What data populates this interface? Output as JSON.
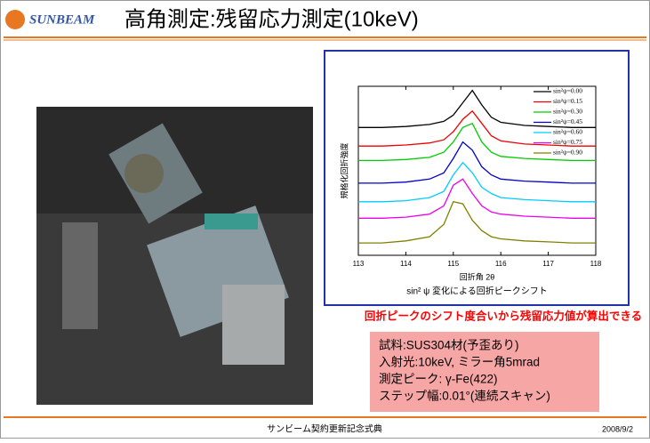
{
  "header": {
    "logo": "SUNBEAM",
    "title": "高角測定:残留応力測定(10keV)"
  },
  "chart_data": {
    "type": "line",
    "y_label": "規格化回折強度",
    "x_label": "回折角 2θ",
    "caption": "sin² ψ 変化による回折ピークシフト",
    "x": [
      113,
      113.5,
      114,
      114.5,
      114.8,
      115,
      115.2,
      115.4,
      115.6,
      115.8,
      116,
      116.5,
      117,
      117.5,
      118
    ],
    "xlim": [
      113,
      118
    ],
    "xticks": [
      113,
      114,
      115,
      116,
      117,
      118
    ],
    "ylim": [
      1.8,
      10
    ],
    "legend": "upper right",
    "series": [
      {
        "name": "sin²ψ=0.00",
        "color": "#000000",
        "values": [
          8.0,
          8.0,
          8.05,
          8.15,
          8.3,
          8.6,
          9.2,
          9.8,
          9.1,
          8.5,
          8.25,
          8.1,
          8.05,
          8.0,
          8.0
        ]
      },
      {
        "name": "sin²ψ=0.15",
        "color": "#ee0000",
        "values": [
          7.1,
          7.1,
          7.15,
          7.25,
          7.4,
          7.8,
          8.4,
          8.8,
          8.2,
          7.6,
          7.35,
          7.2,
          7.15,
          7.1,
          7.1
        ]
      },
      {
        "name": "sin²ψ=0.30",
        "color": "#00cc00",
        "values": [
          6.4,
          6.4,
          6.45,
          6.55,
          6.8,
          7.3,
          8.0,
          8.2,
          7.3,
          6.8,
          6.6,
          6.5,
          6.45,
          6.4,
          6.4
        ]
      },
      {
        "name": "sin²ψ=0.45",
        "color": "#0000cc",
        "values": [
          5.3,
          5.3,
          5.35,
          5.5,
          5.8,
          6.5,
          7.3,
          6.9,
          6.1,
          5.7,
          5.5,
          5.4,
          5.35,
          5.3,
          5.3
        ]
      },
      {
        "name": "sin²ψ=0.60",
        "color": "#00ccff",
        "values": [
          4.4,
          4.4,
          4.45,
          4.6,
          4.9,
          5.7,
          6.3,
          5.8,
          5.1,
          4.8,
          4.6,
          4.5,
          4.45,
          4.4,
          4.4
        ]
      },
      {
        "name": "sin²ψ=0.75",
        "color": "#ee00ee",
        "values": [
          3.6,
          3.6,
          3.65,
          3.8,
          4.2,
          5.2,
          5.5,
          4.8,
          4.2,
          3.9,
          3.8,
          3.7,
          3.65,
          3.6,
          3.6
        ]
      },
      {
        "name": "sin²ψ=0.90",
        "color": "#808000",
        "values": [
          2.4,
          2.4,
          2.5,
          2.7,
          3.3,
          4.4,
          4.3,
          3.5,
          3.0,
          2.7,
          2.6,
          2.5,
          2.45,
          2.4,
          2.4
        ]
      }
    ]
  },
  "note": "回折ピークのシフト度合いから残留応力値が算出できる",
  "info": {
    "lines": [
      "試料:SUS304材(予歪あり)",
      "入射光:10keV, ミラー角5mrad",
      "測定ピーク: γ-Fe(422)",
      "ステップ幅:0.01°(連続スキャン)"
    ]
  },
  "footer": {
    "text": "サンビーム契約更新記念式典",
    "date": "2008/9/2"
  }
}
